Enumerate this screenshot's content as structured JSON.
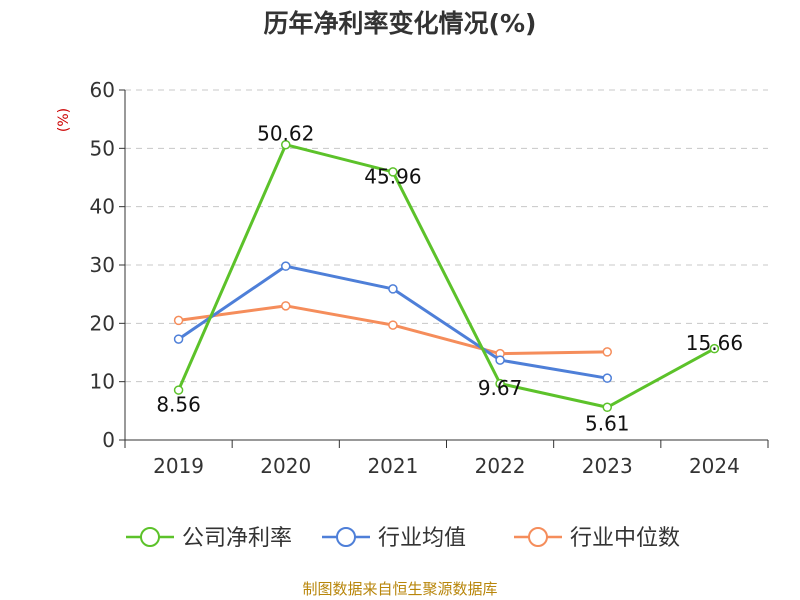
{
  "title": "历年净利率变化情况(%)",
  "unit_label": "(%)",
  "source": "制图数据来自恒生聚源数据库",
  "chart_data": {
    "type": "line",
    "categories": [
      "2019",
      "2020",
      "2021",
      "2022",
      "2023",
      "2024"
    ],
    "ylim": [
      0,
      60
    ],
    "yticks": [
      0,
      10,
      20,
      30,
      40,
      50,
      60
    ],
    "grid": true,
    "legend_position": "bottom",
    "series": [
      {
        "name": "公司净利率",
        "color": "#5cc22a",
        "values": [
          8.56,
          50.62,
          45.96,
          9.67,
          5.61,
          15.66
        ],
        "labels": [
          "8.56",
          "50.62",
          "45.96",
          "9.67",
          "5.61",
          "15.66"
        ]
      },
      {
        "name": "行业均值",
        "color": "#4e7fd8",
        "values": [
          17.3,
          29.8,
          25.9,
          13.7,
          10.6,
          null
        ]
      },
      {
        "name": "行业中位数",
        "color": "#f58d5b",
        "values": [
          20.5,
          23.0,
          19.7,
          14.8,
          15.1,
          null
        ]
      }
    ]
  }
}
